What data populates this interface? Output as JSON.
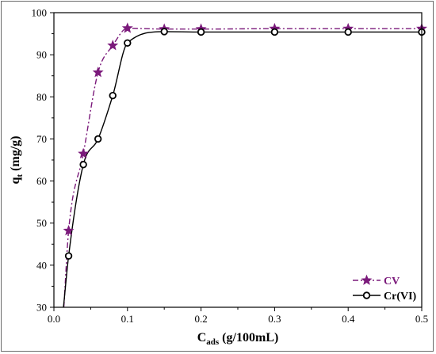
{
  "chart_data": {
    "type": "line",
    "xlabel_main": "C",
    "xlabel_sub": "ads",
    "xlabel_rest": " (g/100mL)",
    "ylabel_main": "q",
    "ylabel_sub": "t",
    "ylabel_rest": " (mg/g)",
    "xlim": [
      0,
      0.5
    ],
    "ylim": [
      30,
      100
    ],
    "xticks": [
      0.0,
      0.1,
      0.2,
      0.3,
      0.4,
      0.5
    ],
    "xtick_labels": [
      "0.0",
      "0.1",
      "0.2",
      "0.3",
      "0.4",
      "0.5"
    ],
    "yticks": [
      30,
      40,
      50,
      60,
      70,
      80,
      90,
      100
    ],
    "ytick_labels": [
      "30",
      "40",
      "50",
      "60",
      "70",
      "80",
      "90",
      "100"
    ],
    "grid": false,
    "legend_position": "bottom-right",
    "series": [
      {
        "name": "CV",
        "color": "#7b1a7b",
        "marker": "star",
        "line_style": "dash-dot",
        "x": [
          0.02,
          0.04,
          0.06,
          0.08,
          0.1,
          0.15,
          0.2,
          0.3,
          0.4,
          0.5
        ],
        "y": [
          48.2,
          66.5,
          85.8,
          92.2,
          96.3,
          96.1,
          96.1,
          96.2,
          96.2,
          96.2
        ]
      },
      {
        "name": "Cr(VI)",
        "color": "#000000",
        "marker": "circle",
        "line_style": "solid",
        "x": [
          0.02,
          0.04,
          0.06,
          0.08,
          0.1,
          0.15,
          0.2,
          0.3,
          0.4,
          0.5
        ],
        "y": [
          42.2,
          63.9,
          70.0,
          80.3,
          92.8,
          95.5,
          95.4,
          95.4,
          95.4,
          95.4
        ]
      }
    ]
  }
}
